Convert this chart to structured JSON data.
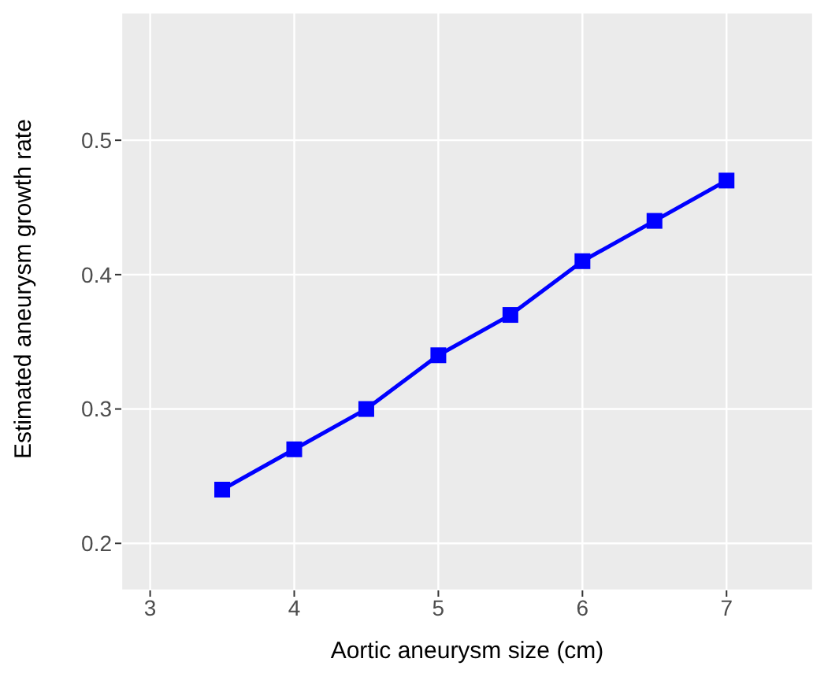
{
  "chart_data": {
    "type": "line",
    "xlabel": "Aortic aneurysm size (cm)",
    "ylabel": "Estimated aneurysm growth rate",
    "x": [
      3.5,
      4,
      4.5,
      5,
      5.5,
      6,
      6.5,
      7
    ],
    "series": [
      {
        "color": "#0000ff",
        "values": [
          0.24,
          0.27,
          0.3,
          0.34,
          0.37,
          0.41,
          0.44,
          0.47
        ]
      }
    ],
    "xlim": [
      2.8,
      7.6
    ],
    "xticks": [
      3,
      4,
      5,
      6,
      7
    ],
    "ylim": [
      0.165,
      0.595
    ],
    "yticks": [
      0.2,
      0.3,
      0.4,
      0.5
    ],
    "grid": true,
    "marker": "square",
    "line_style": "solid"
  }
}
